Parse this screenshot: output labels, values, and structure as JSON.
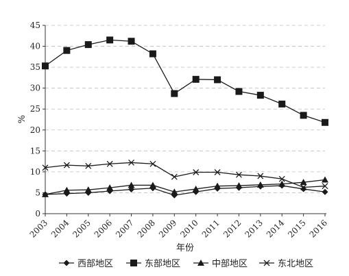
{
  "chart_data": {
    "type": "line",
    "xlabel": "年份",
    "ylabel": "%",
    "ylim": [
      0,
      45
    ],
    "yticks": [
      0,
      5,
      10,
      15,
      20,
      25,
      30,
      35,
      40,
      45
    ],
    "grid": "horizontal dashed",
    "legend_position": "bottom",
    "categories": [
      "2003",
      "2004",
      "2005",
      "2006",
      "2007",
      "2008",
      "2009",
      "2010",
      "2011",
      "2012",
      "2013",
      "2014",
      "2015",
      "2016"
    ],
    "series": [
      {
        "name": "西部地区",
        "marker": "diamond",
        "values": [
          4.6,
          4.8,
          5.0,
          5.4,
          5.8,
          6.1,
          4.4,
          5.2,
          6.0,
          6.2,
          6.5,
          6.7,
          5.9,
          5.2
        ]
      },
      {
        "name": "东部地区",
        "marker": "square",
        "values": [
          35.3,
          39.0,
          40.4,
          41.5,
          41.2,
          38.2,
          28.7,
          32.1,
          32.0,
          29.2,
          28.3,
          26.2,
          23.5,
          21.8
        ]
      },
      {
        "name": "中部地区",
        "marker": "triangle",
        "values": [
          4.6,
          5.6,
          5.7,
          6.2,
          6.8,
          6.8,
          5.2,
          5.9,
          6.6,
          6.7,
          6.9,
          7.1,
          7.5,
          8.1
        ]
      },
      {
        "name": "东北地区",
        "marker": "x",
        "values": [
          11.0,
          11.6,
          11.4,
          11.9,
          12.2,
          11.9,
          8.8,
          9.9,
          9.9,
          9.3,
          9.0,
          8.3,
          6.3,
          6.6
        ]
      }
    ]
  }
}
